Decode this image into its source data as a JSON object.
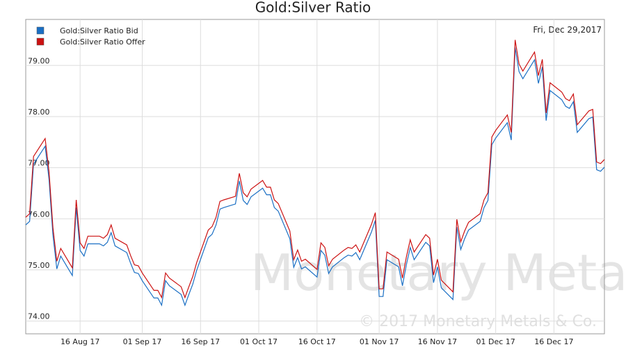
{
  "chart_data": {
    "type": "line",
    "title": "Gold:Silver Ratio",
    "date_label": "Fri, Dec 29,2017",
    "watermark": "Monetary Metals",
    "copyright": "© 2017 Monetary Metals & Co.",
    "x": [
      "2017-08-02",
      "2017-08-03",
      "2017-08-04",
      "2017-08-07",
      "2017-08-08",
      "2017-08-09",
      "2017-08-10",
      "2017-08-11",
      "2017-08-14",
      "2017-08-15",
      "2017-08-16",
      "2017-08-17",
      "2017-08-18",
      "2017-08-21",
      "2017-08-22",
      "2017-08-23",
      "2017-08-24",
      "2017-08-25",
      "2017-08-28",
      "2017-08-29",
      "2017-08-30",
      "2017-08-31",
      "2017-09-01",
      "2017-09-04",
      "2017-09-05",
      "2017-09-06",
      "2017-09-07",
      "2017-09-08",
      "2017-09-11",
      "2017-09-12",
      "2017-09-13",
      "2017-09-14",
      "2017-09-15",
      "2017-09-18",
      "2017-09-19",
      "2017-09-20",
      "2017-09-21",
      "2017-09-22",
      "2017-09-25",
      "2017-09-26",
      "2017-09-27",
      "2017-09-28",
      "2017-09-29",
      "2017-10-02",
      "2017-10-03",
      "2017-10-04",
      "2017-10-05",
      "2017-10-06",
      "2017-10-09",
      "2017-10-10",
      "2017-10-11",
      "2017-10-12",
      "2017-10-13",
      "2017-10-16",
      "2017-10-17",
      "2017-10-18",
      "2017-10-19",
      "2017-10-20",
      "2017-10-23",
      "2017-10-24",
      "2017-10-25",
      "2017-10-26",
      "2017-10-27",
      "2017-10-30",
      "2017-10-31",
      "2017-11-01",
      "2017-11-02",
      "2017-11-03",
      "2017-11-06",
      "2017-11-07",
      "2017-11-08",
      "2017-11-09",
      "2017-11-10",
      "2017-11-13",
      "2017-11-14",
      "2017-11-15",
      "2017-11-16",
      "2017-11-17",
      "2017-11-20",
      "2017-11-21",
      "2017-11-22",
      "2017-11-23",
      "2017-11-24",
      "2017-11-27",
      "2017-11-28",
      "2017-11-29",
      "2017-11-30",
      "2017-12-01",
      "2017-12-04",
      "2017-12-05",
      "2017-12-06",
      "2017-12-07",
      "2017-12-08",
      "2017-12-11",
      "2017-12-12",
      "2017-12-13",
      "2017-12-14",
      "2017-12-15",
      "2017-12-18",
      "2017-12-19",
      "2017-12-20",
      "2017-12-21",
      "2017-12-22",
      "2017-12-25",
      "2017-12-26",
      "2017-12-27",
      "2017-12-28",
      "2017-12-29"
    ],
    "series": [
      {
        "name": "Gold:Silver Ratio Bid",
        "color": "#1a6fc4",
        "values": [
          75.88,
          75.95,
          77.07,
          77.42,
          76.77,
          75.68,
          75.02,
          75.27,
          74.89,
          76.22,
          75.38,
          75.27,
          75.51,
          75.51,
          75.47,
          75.54,
          75.73,
          75.47,
          75.34,
          75.13,
          74.95,
          74.93,
          74.79,
          74.45,
          74.45,
          74.31,
          74.79,
          74.69,
          74.52,
          74.31,
          74.52,
          74.72,
          74.99,
          75.63,
          75.7,
          75.88,
          76.19,
          76.22,
          76.29,
          76.74,
          76.36,
          76.28,
          76.43,
          76.6,
          76.47,
          76.47,
          76.22,
          76.15,
          75.61,
          75.05,
          75.24,
          75.02,
          75.06,
          74.86,
          75.38,
          75.29,
          74.93,
          75.06,
          75.24,
          75.29,
          75.27,
          75.34,
          75.2,
          75.74,
          75.97,
          74.48,
          74.48,
          75.2,
          75.06,
          74.69,
          75.1,
          75.44,
          75.2,
          75.54,
          75.47,
          74.75,
          75.06,
          74.65,
          74.42,
          75.84,
          75.4,
          75.61,
          75.78,
          75.95,
          76.22,
          76.36,
          77.45,
          77.58,
          77.88,
          77.54,
          79.35,
          78.88,
          78.74,
          79.11,
          78.65,
          78.97,
          77.92,
          78.51,
          78.33,
          78.2,
          78.16,
          78.29,
          77.69,
          77.96,
          77.99,
          76.96,
          76.93,
          77.01
        ]
      },
      {
        "name": "Gold:Silver Ratio Offer",
        "color": "#cc1111",
        "values": [
          76.03,
          76.1,
          77.22,
          77.57,
          76.92,
          75.83,
          75.17,
          75.42,
          75.04,
          76.37,
          75.53,
          75.42,
          75.66,
          75.66,
          75.62,
          75.69,
          75.88,
          75.62,
          75.49,
          75.28,
          75.1,
          75.08,
          74.94,
          74.6,
          74.6,
          74.46,
          74.94,
          74.84,
          74.67,
          74.46,
          74.67,
          74.87,
          75.14,
          75.78,
          75.85,
          76.03,
          76.34,
          76.37,
          76.44,
          76.89,
          76.51,
          76.43,
          76.58,
          76.75,
          76.62,
          76.62,
          76.37,
          76.3,
          75.76,
          75.2,
          75.39,
          75.17,
          75.21,
          75.01,
          75.53,
          75.44,
          75.08,
          75.21,
          75.39,
          75.44,
          75.42,
          75.49,
          75.35,
          75.89,
          76.12,
          74.63,
          74.63,
          75.35,
          75.21,
          74.84,
          75.25,
          75.59,
          75.35,
          75.69,
          75.62,
          74.9,
          75.21,
          74.8,
          74.57,
          75.99,
          75.55,
          75.76,
          75.93,
          76.1,
          76.37,
          76.51,
          77.6,
          77.73,
          78.03,
          77.69,
          79.5,
          79.03,
          78.89,
          79.26,
          78.8,
          79.12,
          78.07,
          78.66,
          78.48,
          78.35,
          78.31,
          78.44,
          77.84,
          78.11,
          78.14,
          77.11,
          77.08,
          77.16
        ]
      }
    ],
    "xlim": [
      "2017-08-02",
      "2017-12-29"
    ],
    "xticks": [
      {
        "value": "2017-08-16",
        "label": "16 Aug 17"
      },
      {
        "value": "2017-09-01",
        "label": "01 Sep 17"
      },
      {
        "value": "2017-09-16",
        "label": "16 Sep 17"
      },
      {
        "value": "2017-10-01",
        "label": "01 Oct 17"
      },
      {
        "value": "2017-10-16",
        "label": "16 Oct 17"
      },
      {
        "value": "2017-11-01",
        "label": "01 Nov 17"
      },
      {
        "value": "2017-11-16",
        "label": "16 Nov 17"
      },
      {
        "value": "2017-12-01",
        "label": "01 Dec 17"
      },
      {
        "value": "2017-12-16",
        "label": "16 Dec 17"
      }
    ],
    "ylim": [
      73.75,
      79.9
    ],
    "yticks": [
      {
        "value": 74,
        "label": "74.00"
      },
      {
        "value": 75,
        "label": "75.00"
      },
      {
        "value": 76,
        "label": "76.00"
      },
      {
        "value": 77,
        "label": "77.00"
      },
      {
        "value": 78,
        "label": "78.00"
      },
      {
        "value": 79,
        "label": "79.00"
      }
    ],
    "grid": true,
    "legend": "top-left"
  }
}
